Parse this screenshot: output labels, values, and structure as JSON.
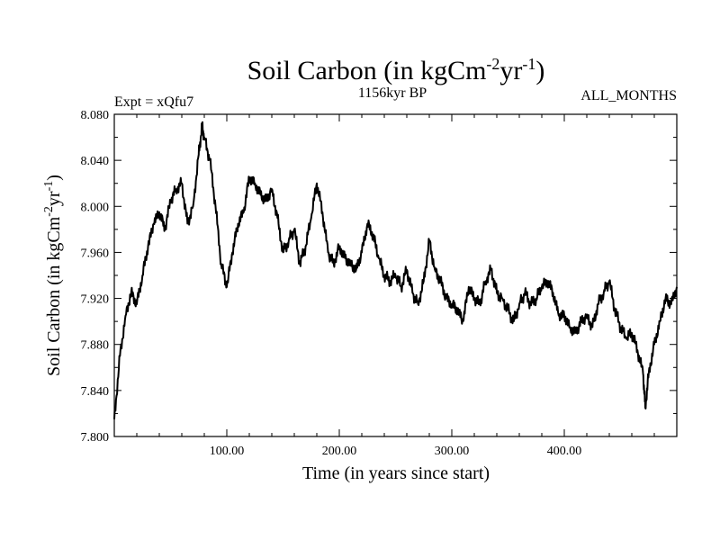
{
  "chart_data": {
    "type": "line",
    "title_main": "Soil Carbon (in kgCm",
    "title_sup1": "-2",
    "title_mid": "yr",
    "title_sup2": "-1",
    "title_end": ")",
    "subtitle_left": "Expt = xQfu7",
    "subtitle_center": "1156kyr BP",
    "subtitle_right": "ALL_MONTHS",
    "xlabel": "Time (in years since start)",
    "ylabel_main": "Soil Carbon (in kgCm",
    "ylabel_sup1": "-2",
    "ylabel_mid": "yr",
    "ylabel_sup2": "-1",
    "ylabel_end": ")",
    "xlim": [
      0,
      500
    ],
    "ylim": [
      7.8,
      8.08
    ],
    "x_ticks": [
      100,
      200,
      300,
      400
    ],
    "x_tick_labels": [
      "100.00",
      "200.00",
      "300.00",
      "400.00"
    ],
    "y_ticks": [
      7.8,
      7.84,
      7.88,
      7.92,
      7.96,
      8.0,
      8.04,
      8.08
    ],
    "y_tick_labels": [
      "7.800",
      "7.840",
      "7.880",
      "7.920",
      "7.960",
      "8.000",
      "8.040",
      "8.080"
    ],
    "grid": false,
    "series": [
      {
        "name": "Soil Carbon",
        "x": [
          0,
          5,
          10,
          15,
          20,
          25,
          30,
          35,
          40,
          45,
          50,
          55,
          60,
          65,
          70,
          75,
          78,
          80,
          85,
          90,
          95,
          100,
          105,
          110,
          115,
          120,
          125,
          130,
          135,
          140,
          145,
          150,
          155,
          160,
          165,
          170,
          175,
          180,
          185,
          190,
          195,
          200,
          205,
          210,
          215,
          220,
          225,
          230,
          235,
          240,
          245,
          250,
          255,
          260,
          265,
          270,
          275,
          280,
          285,
          290,
          295,
          300,
          305,
          310,
          315,
          320,
          325,
          330,
          335,
          340,
          345,
          350,
          355,
          360,
          365,
          370,
          375,
          380,
          385,
          390,
          395,
          400,
          405,
          410,
          415,
          420,
          425,
          430,
          435,
          440,
          445,
          450,
          455,
          460,
          465,
          470,
          472,
          475,
          480,
          485,
          490,
          495,
          500
        ],
        "values": [
          7.815,
          7.87,
          7.905,
          7.925,
          7.915,
          7.94,
          7.965,
          7.985,
          7.995,
          7.98,
          8.005,
          8.015,
          8.02,
          7.985,
          8.0,
          8.045,
          8.07,
          8.06,
          8.04,
          8.0,
          7.95,
          7.93,
          7.96,
          7.985,
          7.995,
          8.025,
          8.02,
          8.01,
          8.005,
          8.015,
          7.99,
          7.96,
          7.97,
          7.98,
          7.95,
          7.965,
          7.99,
          8.02,
          7.995,
          7.96,
          7.95,
          7.965,
          7.955,
          7.95,
          7.945,
          7.96,
          7.985,
          7.975,
          7.955,
          7.94,
          7.935,
          7.94,
          7.93,
          7.945,
          7.925,
          7.915,
          7.935,
          7.97,
          7.945,
          7.935,
          7.92,
          7.915,
          7.91,
          7.9,
          7.93,
          7.92,
          7.915,
          7.935,
          7.945,
          7.925,
          7.92,
          7.91,
          7.9,
          7.915,
          7.925,
          7.915,
          7.92,
          7.93,
          7.935,
          7.925,
          7.905,
          7.905,
          7.895,
          7.89,
          7.9,
          7.905,
          7.895,
          7.915,
          7.925,
          7.935,
          7.91,
          7.895,
          7.885,
          7.89,
          7.875,
          7.855,
          7.825,
          7.855,
          7.88,
          7.9,
          7.92,
          7.915,
          7.93
        ]
      }
    ]
  }
}
